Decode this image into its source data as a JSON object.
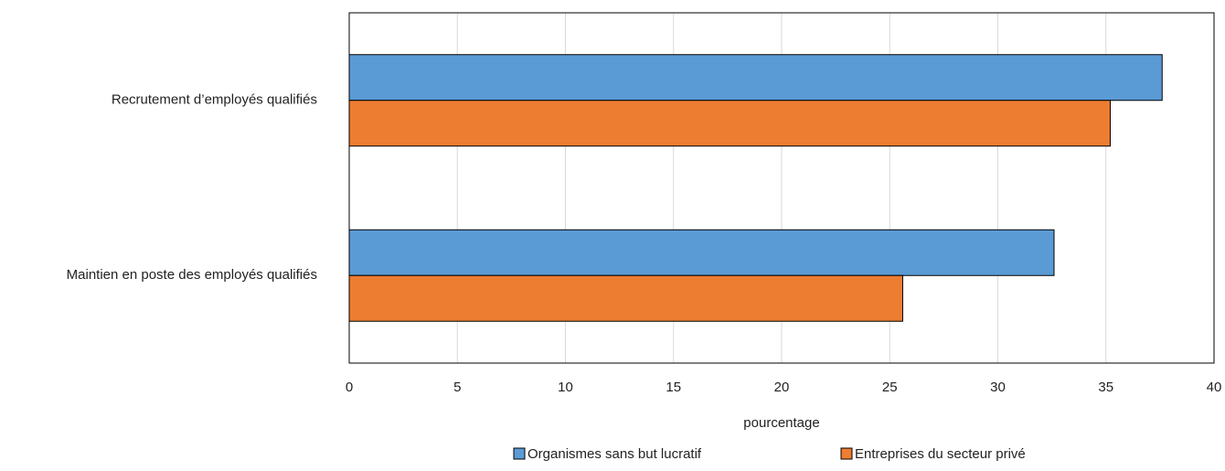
{
  "chart_data": {
    "type": "barh",
    "categories": [
      "Recrutement d’employés qualifiés",
      "Maintien en poste des employés qualifiés"
    ],
    "series": [
      {
        "name": "Organismes sans but lucratif",
        "color": "#5b9bd5",
        "values": [
          37.6,
          32.6
        ]
      },
      {
        "name": "Entreprises du secteur privé",
        "color": "#ed7d31",
        "values": [
          35.2,
          25.6
        ]
      }
    ],
    "xlim": [
      0,
      40
    ],
    "xticks": [
      0,
      5,
      10,
      15,
      20,
      25,
      30,
      35,
      40
    ],
    "xlabel": "pourcentage",
    "grid": true,
    "legend": "bottom"
  }
}
